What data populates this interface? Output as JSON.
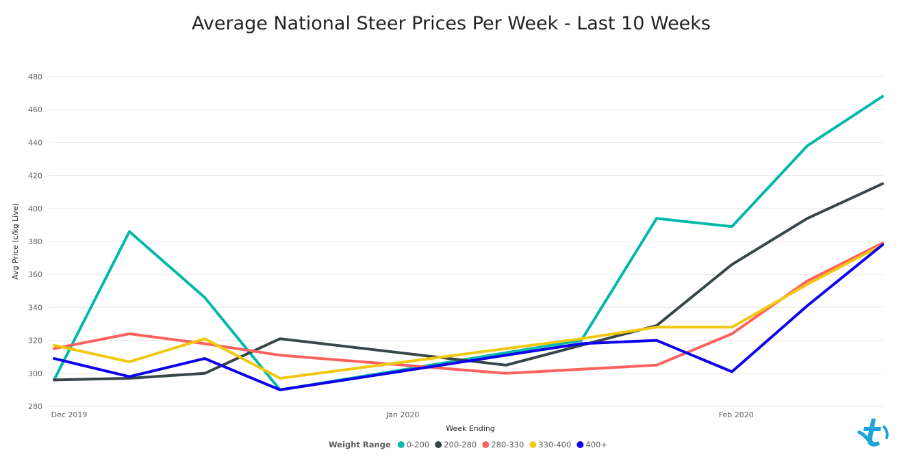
{
  "chart_data": {
    "type": "line",
    "title": "Average National Steer Prices Per Week - Last 10 Weeks",
    "xlabel": "Week Ending",
    "ylabel": "Avg Price (c/kg Live)",
    "ylim": [
      280,
      480
    ],
    "yticks": [
      280,
      300,
      320,
      340,
      360,
      380,
      400,
      420,
      440,
      460,
      480
    ],
    "x": [
      "2019-12-01",
      "2019-12-08",
      "2019-12-15",
      "2019-12-22",
      "2019-12-29",
      "2020-01-05",
      "2020-01-12",
      "2020-01-19",
      "2020-01-26",
      "2020-02-02",
      "2020-02-09",
      "2020-02-16"
    ],
    "xticks": [
      {
        "date": "2019-12-01",
        "label": "Dec 2019"
      },
      {
        "date": "2020-01-01",
        "label": "Jan 2020"
      },
      {
        "date": "2020-02-01",
        "label": "Feb 2020"
      }
    ],
    "grid": true,
    "legend_placement": "bottom",
    "legend_title": "Weight Range",
    "series": [
      {
        "name": "0-200",
        "color": "#01b8aa",
        "points": [
          [
            "2019-12-01",
            296
          ],
          [
            "2019-12-08",
            386
          ],
          [
            "2019-12-15",
            346
          ],
          [
            "2019-12-22",
            290
          ],
          [
            "2020-01-19",
            320
          ],
          [
            "2020-01-26",
            394
          ],
          [
            "2020-02-02",
            389
          ],
          [
            "2020-02-09",
            438
          ],
          [
            "2020-02-16",
            468
          ]
        ]
      },
      {
        "name": "200-280",
        "color": "#374649",
        "points": [
          [
            "2019-12-01",
            296
          ],
          [
            "2019-12-08",
            297
          ],
          [
            "2019-12-15",
            300
          ],
          [
            "2019-12-22",
            321
          ],
          [
            "2020-01-12",
            305
          ],
          [
            "2020-01-26",
            329
          ],
          [
            "2020-02-02",
            366
          ],
          [
            "2020-02-09",
            394
          ],
          [
            "2020-02-16",
            415
          ]
        ]
      },
      {
        "name": "280-330",
        "color": "#fd625e",
        "points": [
          [
            "2019-12-01",
            315
          ],
          [
            "2019-12-08",
            324
          ],
          [
            "2019-12-15",
            318
          ],
          [
            "2019-12-22",
            311
          ],
          [
            "2020-01-12",
            300
          ],
          [
            "2020-01-26",
            305
          ],
          [
            "2020-02-02",
            324
          ],
          [
            "2020-02-09",
            356
          ],
          [
            "2020-02-16",
            379
          ]
        ]
      },
      {
        "name": "330-400",
        "color": "#f2c80f",
        "points": [
          [
            "2019-12-01",
            317
          ],
          [
            "2019-12-08",
            307
          ],
          [
            "2019-12-15",
            321
          ],
          [
            "2019-12-22",
            297
          ],
          [
            "2020-01-19",
            321
          ],
          [
            "2020-01-26",
            328
          ],
          [
            "2020-02-02",
            328
          ],
          [
            "2020-02-09",
            354
          ],
          [
            "2020-02-16",
            378
          ]
        ]
      },
      {
        "name": "400+",
        "color": "#0d00ee",
        "points": [
          [
            "2019-12-01",
            309
          ],
          [
            "2019-12-08",
            298
          ],
          [
            "2019-12-15",
            309
          ],
          [
            "2019-12-22",
            290
          ],
          [
            "2020-01-19",
            318
          ],
          [
            "2020-01-26",
            320
          ],
          [
            "2020-02-02",
            301
          ],
          [
            "2020-02-09",
            341
          ],
          [
            "2020-02-16",
            378
          ]
        ]
      }
    ]
  },
  "logo": {
    "name": "brand-logo-icon",
    "color": "#1aa3dd"
  }
}
